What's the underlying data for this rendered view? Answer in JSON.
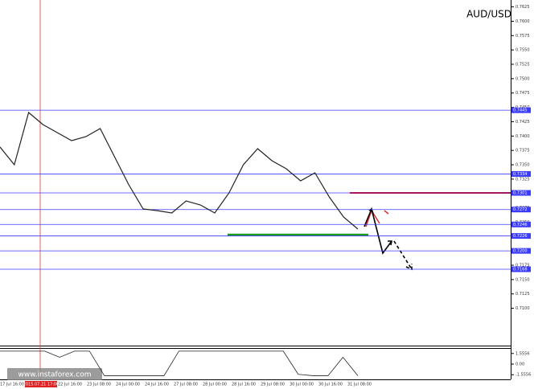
{
  "title": "AUD/USD",
  "watermark": "www.instaforex.com",
  "chart_data": {
    "type": "line",
    "color": "#222222",
    "values": [
      0.7381,
      0.735,
      0.7441,
      0.742,
      0.7406,
      0.7392,
      0.7399,
      0.7413,
      0.7364,
      0.7315,
      0.7273,
      0.727,
      0.7266,
      0.7287,
      0.728,
      0.7266,
      0.7301,
      0.735,
      0.7378,
      0.7357,
      0.7343,
      0.7322,
      0.7336,
      0.7294,
      0.7259,
      0.7238
    ],
    "ylim": [
      0.7035,
      0.7637
    ],
    "yticks": [
      0.7625,
      {
        "value": 0.76,
        "label": "0.7600"
      },
      0.7575,
      {
        "value": 0.755,
        "label": "0.7550"
      },
      0.7525,
      {
        "value": 0.75,
        "label": "0.7500"
      },
      0.7475,
      {
        "value": 0.745,
        "label": "0.7450"
      },
      0.7425,
      {
        "value": 0.74,
        "label": "0.7400"
      },
      0.7375,
      {
        "value": 0.735,
        "label": "0.7350"
      },
      0.7325,
      {
        "value": 0.73,
        "label": "0.7300"
      },
      0.7275,
      {
        "value": 0.725,
        "label": "0.7250"
      },
      0.7225,
      {
        "value": 0.72,
        "label": "0.7200"
      },
      0.7175,
      {
        "value": 0.715,
        "label": "0.7150"
      },
      0.7125,
      {
        "value": 0.71,
        "label": "0.7100"
      }
    ],
    "levels": [
      0.7445,
      0.7334,
      0.7301,
      0.7272,
      0.7246,
      0.7226,
      {
        "value": 0.72,
        "label": "0.7200"
      },
      0.7168
    ],
    "level_color": "#3b3bff",
    "x_labels": [
      "17 Jul 16:00",
      "2015.07.21 17:00",
      "22 Jul 16:00",
      "23 Jul 08:00",
      "24 Jul 00:00",
      "24 Jul 16:00",
      "27 Jul 08:00",
      "28 Jul 00:00",
      "28 Jul 16:00",
      "29 Jul 08:00",
      "30 Jul 00:00",
      "30 Jul 16:00",
      "31 Jul 08:00"
    ],
    "indicator": {
      "type": "line",
      "values": [
        1.9,
        1.9,
        1.9,
        1.9,
        1.0,
        1.9,
        1.9,
        -1.7,
        -1.7,
        -1.7,
        -1.7,
        -1.7,
        1.9,
        1.9,
        1.9,
        1.9,
        1.9,
        1.9,
        1.9,
        1.9,
        -1.5,
        -1.7,
        -1.7,
        1.0,
        -1.7
      ],
      "ylim": [
        -2,
        2
      ],
      "yticks": [
        1.5556,
        {
          "value": 0,
          "label": "0.00"
        },
        -1.5556
      ]
    }
  }
}
